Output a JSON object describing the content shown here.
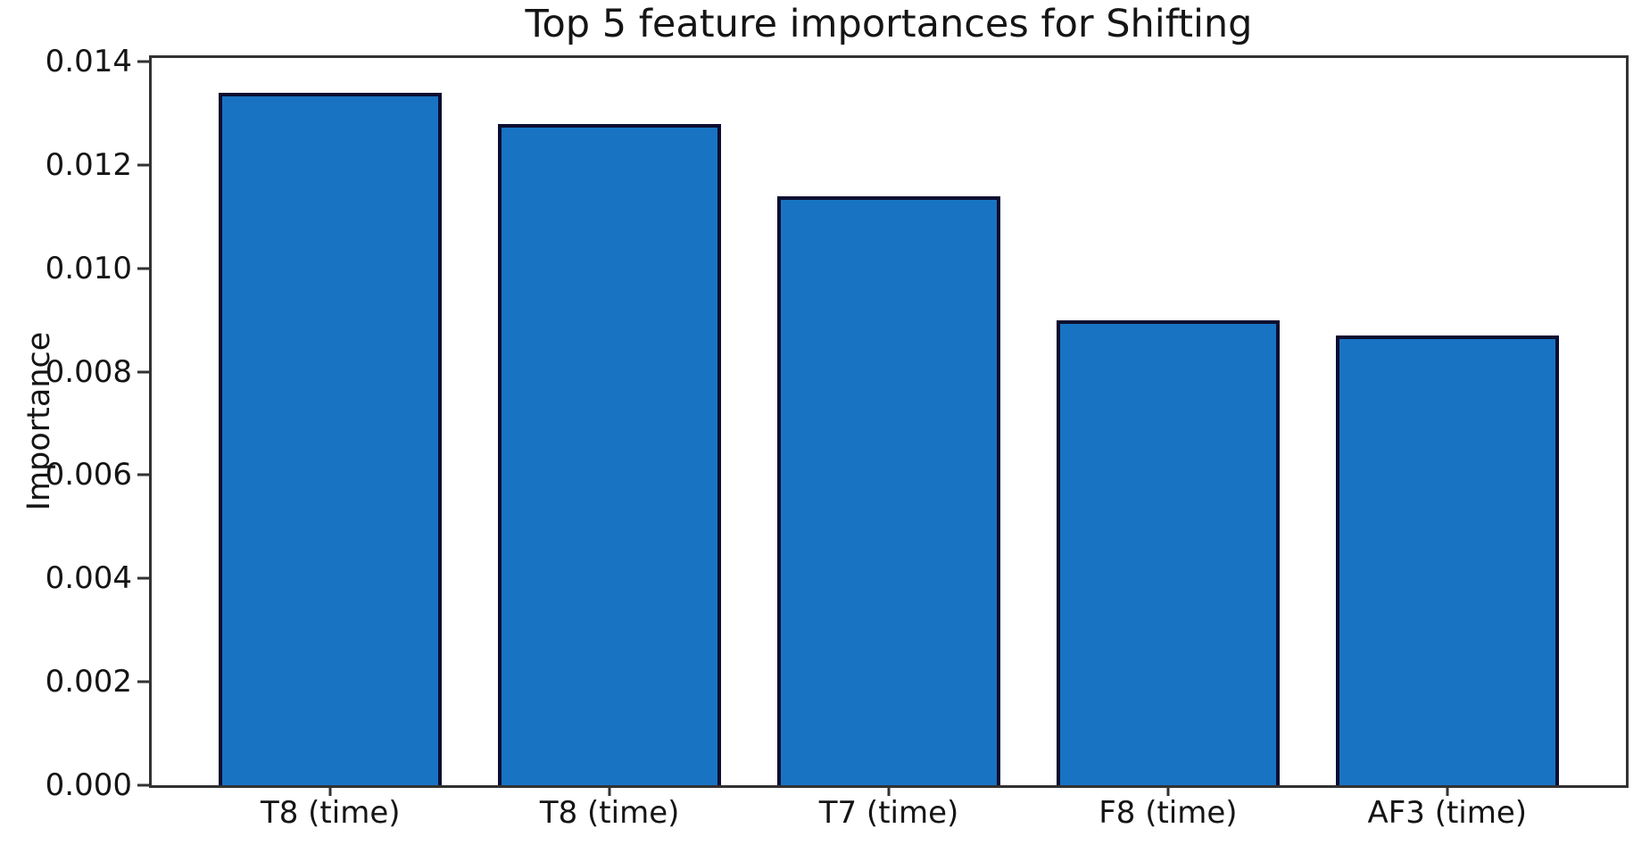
{
  "chart_data": {
    "type": "bar",
    "title": "Top 5 feature importances for Shifting",
    "xlabel": "",
    "ylabel": "Importance",
    "categories": [
      "T8 (time)",
      "T8 (time)",
      "T7 (time)",
      "F8 (time)",
      "AF3 (time)"
    ],
    "values": [
      0.0134,
      0.0128,
      0.0114,
      0.009,
      0.0087
    ],
    "ylim": [
      0,
      0.01407
    ],
    "yticks": [
      0.0,
      0.002,
      0.004,
      0.006,
      0.008,
      0.01,
      0.012,
      0.014
    ],
    "ytick_labels": [
      "0.000",
      "0.002",
      "0.004",
      "0.006",
      "0.008",
      "0.010",
      "0.012",
      "0.014"
    ],
    "grid": false,
    "legend": "none",
    "bar_color": "#1874c3",
    "bar_edge_color": "#0d0d30",
    "bar_width_frac": 0.8
  }
}
